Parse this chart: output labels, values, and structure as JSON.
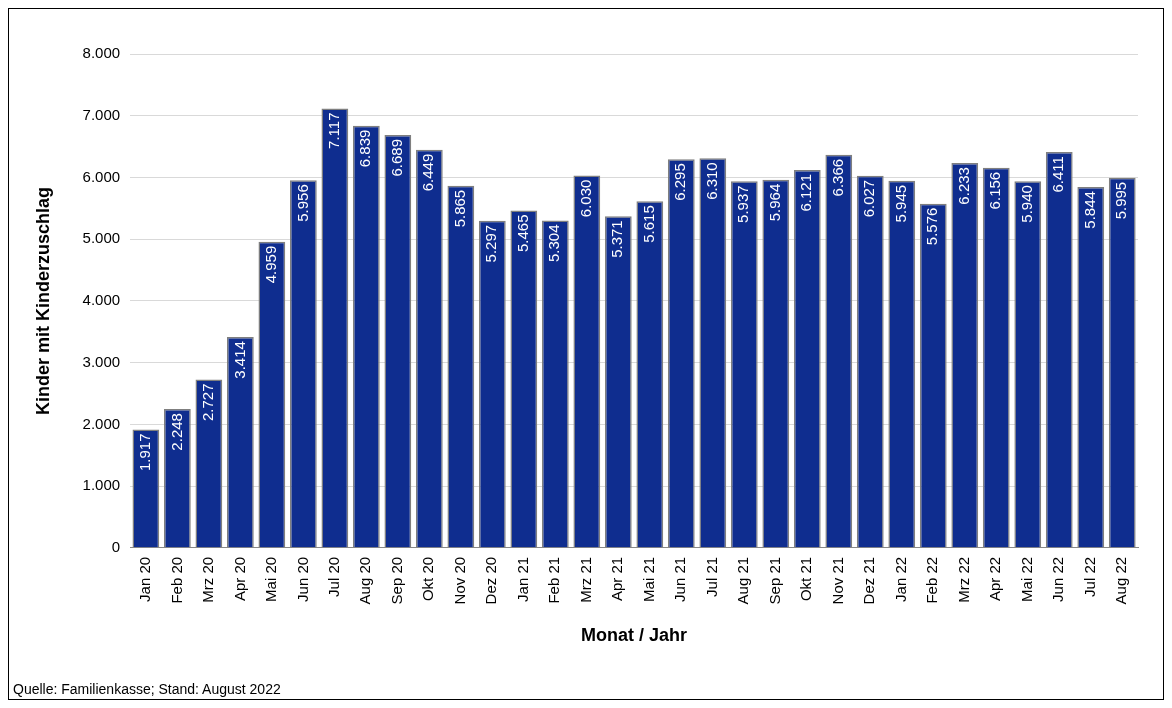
{
  "chart_data": {
    "type": "bar",
    "xlabel": "Monat / Jahr",
    "ylabel": "Kinder mit Kinderzuschlag",
    "categories": [
      "Jan 20",
      "Feb 20",
      "Mrz 20",
      "Apr 20",
      "Mai 20",
      "Jun 20",
      "Jul 20",
      "Aug 20",
      "Sep 20",
      "Okt 20",
      "Nov 20",
      "Dez 20",
      "Jan 21",
      "Feb 21",
      "Mrz 21",
      "Apr 21",
      "Mai 21",
      "Jun 21",
      "Jul 21",
      "Aug 21",
      "Sep 21",
      "Okt 21",
      "Nov 21",
      "Dez 21",
      "Jan 22",
      "Feb 22",
      "Mrz 22",
      "Apr 22",
      "Mai 22",
      "Jun 22",
      "Jul 22",
      "Aug 22"
    ],
    "values": [
      1917,
      2248,
      2727,
      3414,
      4959,
      5956,
      7117,
      6839,
      6689,
      6449,
      5865,
      5297,
      5465,
      5304,
      6030,
      5371,
      5615,
      6295,
      6310,
      5937,
      5964,
      6121,
      6366,
      6027,
      5945,
      5576,
      6233,
      6156,
      5940,
      6411,
      5844,
      5995
    ],
    "color": "#0f2d8f",
    "ylim": [
      0,
      8000
    ],
    "yticks": [
      {
        "value": 0,
        "label": "0"
      },
      {
        "value": 1000,
        "label": "1.000"
      },
      {
        "value": 2000,
        "label": "2.000"
      },
      {
        "value": 3000,
        "label": "3.000"
      },
      {
        "value": 4000,
        "label": "4.000"
      },
      {
        "value": 5000,
        "label": "5.000"
      },
      {
        "value": 6000,
        "label": "6.000"
      },
      {
        "value": 7000,
        "label": "7.000"
      },
      {
        "value": 8000,
        "label": "8.000"
      }
    ],
    "value_labels": [
      "1.917",
      "2.248",
      "2.727",
      "3.414",
      "4.959",
      "5.956",
      "7.117",
      "6.839",
      "6.689",
      "6.449",
      "5.865",
      "5.297",
      "5.465",
      "5.304",
      "6.030",
      "5.371",
      "5.615",
      "6.295",
      "6.310",
      "5.937",
      "5.964",
      "6.121",
      "6.366",
      "6.027",
      "5.945",
      "5.576",
      "6.233",
      "6.156",
      "5.940",
      "6.411",
      "5.844",
      "5.995"
    ],
    "grid": "y",
    "legend": false,
    "annotations": [
      "Quelle: Familienkasse; Stand: August 2022"
    ]
  }
}
